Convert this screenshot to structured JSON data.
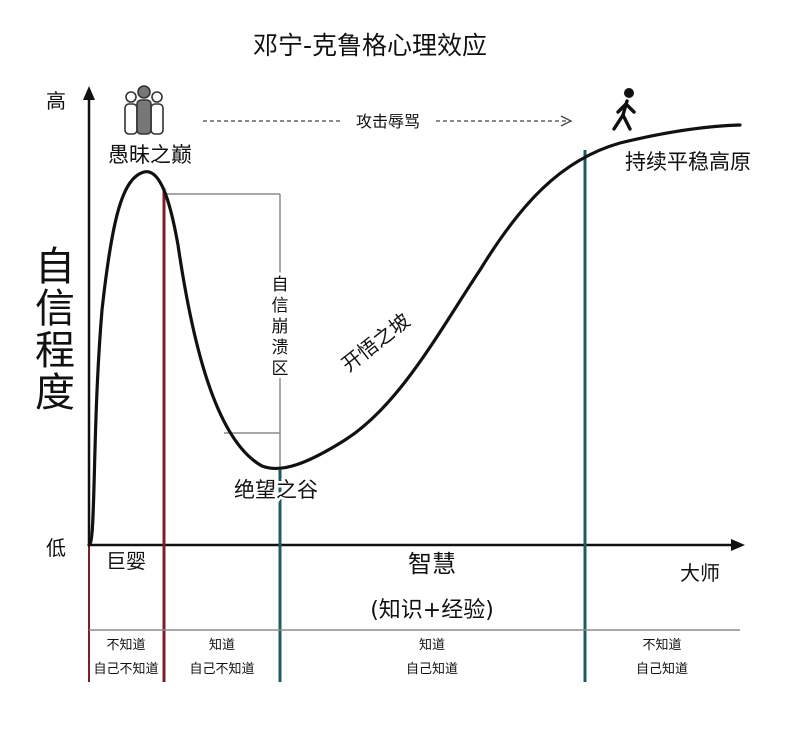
{
  "title": "邓宁-克鲁格心理效应",
  "y_axis": {
    "label_chars": [
      "自",
      "信",
      "程",
      "度"
    ],
    "high": "高",
    "low": "低"
  },
  "x_axis": {
    "label": "智慧",
    "sublabel": "(知识+经验)",
    "end_label": "大师"
  },
  "annotations": {
    "peak": "愚昧之巅",
    "arrow_text": "攻击辱骂",
    "plateau": "持续平稳高原",
    "collapse_chars": [
      "自",
      "信",
      "崩",
      "溃",
      "区"
    ],
    "slope": "开悟之坡",
    "valley": "绝望之谷",
    "infant": "巨婴"
  },
  "stages": [
    {
      "line1": "不知道",
      "line2": "自己不知道"
    },
    {
      "line1": "知道",
      "line2": "自己不知道"
    },
    {
      "line1": "知道",
      "line2": "自己知道"
    },
    {
      "line1": "不知道",
      "line2": "自己知道"
    }
  ],
  "icons": {
    "group": "group-people-icon",
    "walker": "walking-person-icon"
  },
  "colors": {
    "curve": "#111111",
    "red_line": "#7a1f25",
    "teal_line": "#1f5a60",
    "gray": "#8c8c8c"
  }
}
